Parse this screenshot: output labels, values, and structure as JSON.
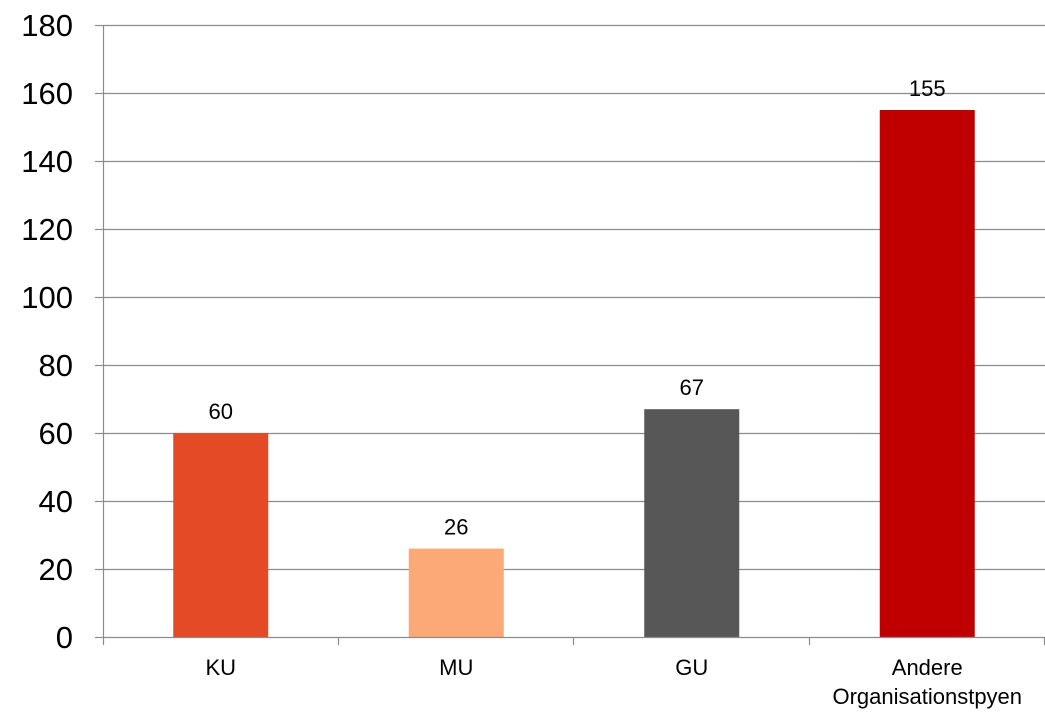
{
  "chart_data": {
    "type": "bar",
    "title": "",
    "xlabel": "",
    "ylabel": "",
    "categories": [
      [
        "KU"
      ],
      [
        "MU"
      ],
      [
        "GU"
      ],
      [
        "Andere",
        "Organisationstpyen"
      ]
    ],
    "values": [
      60,
      26,
      67,
      155
    ],
    "data_labels": [
      "60",
      "26",
      "67",
      "155"
    ],
    "colors": [
      "#E34A25",
      "#FCA877",
      "#575757",
      "#C00000"
    ],
    "ylim": [
      0,
      180
    ],
    "yticks": [
      0,
      20,
      40,
      60,
      80,
      100,
      120,
      140,
      160,
      180
    ],
    "grid": true,
    "legend": "none"
  }
}
